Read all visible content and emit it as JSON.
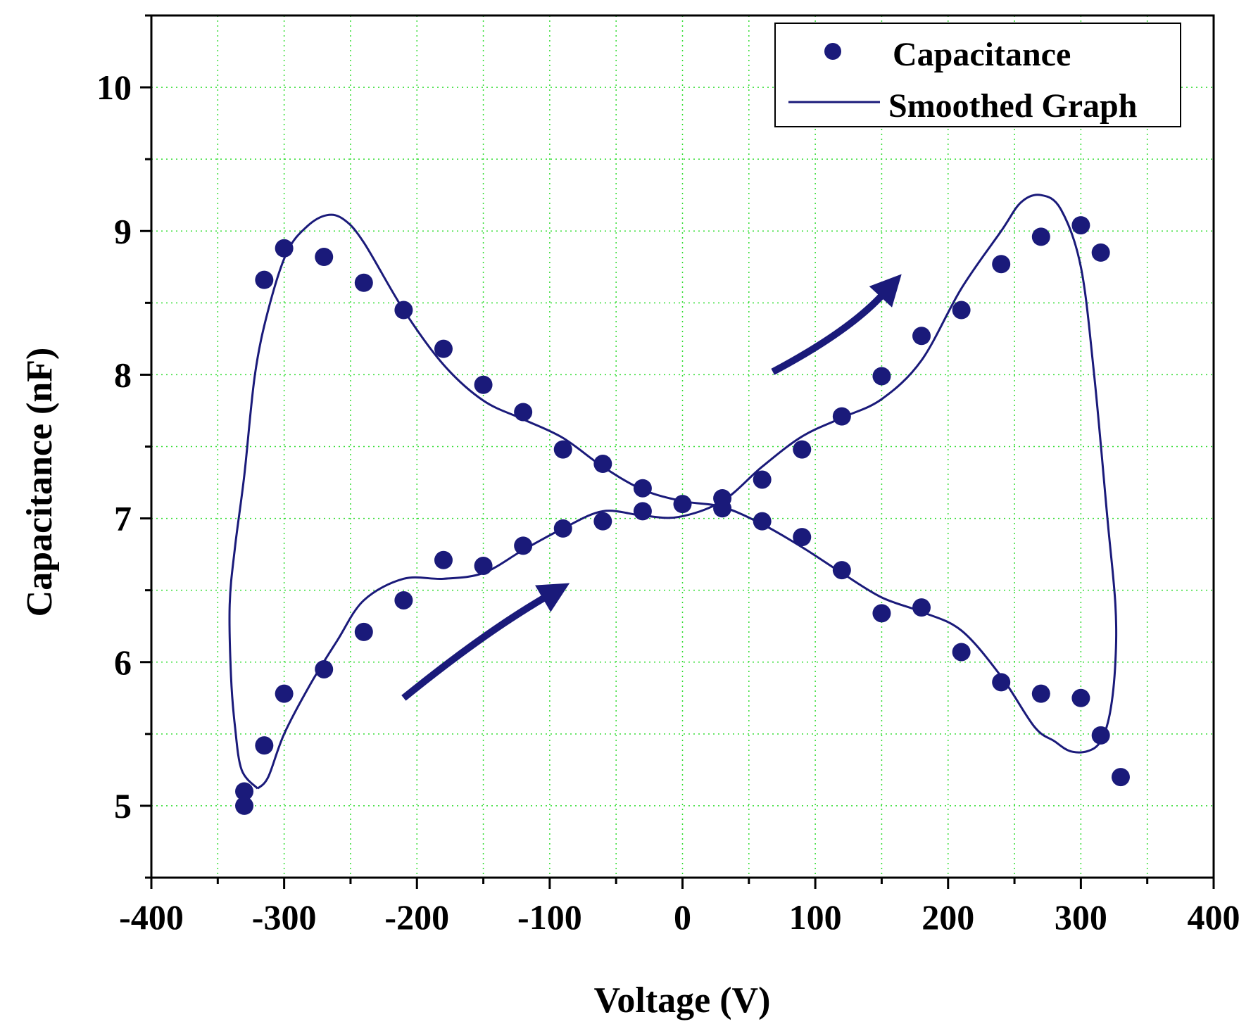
{
  "chart_data": {
    "type": "scatter",
    "title": "",
    "xlabel": "Voltage (V)",
    "ylabel": "Capacitance (nF)",
    "xlim": [
      -400,
      400
    ],
    "ylim": [
      4.5,
      10.5
    ],
    "xticks": [
      -400,
      -300,
      -200,
      -100,
      0,
      100,
      200,
      300,
      400
    ],
    "xtick_labels": [
      "-400",
      "-300",
      "-200",
      "-100",
      "0",
      "100",
      "200",
      "300",
      "400"
    ],
    "yticks": [
      5,
      6,
      7,
      8,
      9,
      10
    ],
    "ytick_labels": [
      "5",
      "6",
      "7",
      "8",
      "9",
      "10"
    ],
    "grid": true,
    "legend_position": "top-right",
    "colors": {
      "series": "#1a1a7a",
      "grid": "#33dd33",
      "axis": "#000000"
    },
    "series": [
      {
        "name": "Capacitance",
        "kind": "scatter",
        "points": [
          [
            -330,
            5.0
          ],
          [
            -330,
            5.1
          ],
          [
            -315,
            5.42
          ],
          [
            -300,
            5.78
          ],
          [
            -270,
            5.95
          ],
          [
            -240,
            6.21
          ],
          [
            -210,
            6.43
          ],
          [
            -180,
            6.71
          ],
          [
            -150,
            6.67
          ],
          [
            -120,
            6.81
          ],
          [
            -90,
            6.93
          ],
          [
            -60,
            6.98
          ],
          [
            -30,
            7.05
          ],
          [
            0,
            7.1
          ],
          [
            30,
            7.07
          ],
          [
            60,
            7.27
          ],
          [
            90,
            7.48
          ],
          [
            120,
            7.71
          ],
          [
            150,
            7.99
          ],
          [
            180,
            8.27
          ],
          [
            210,
            8.45
          ],
          [
            240,
            8.77
          ],
          [
            270,
            8.96
          ],
          [
            300,
            9.04
          ],
          [
            315,
            8.85
          ],
          [
            315,
            5.49
          ],
          [
            330,
            5.2
          ],
          [
            300,
            5.75
          ],
          [
            270,
            5.78
          ],
          [
            240,
            5.86
          ],
          [
            210,
            6.07
          ],
          [
            180,
            6.38
          ],
          [
            150,
            6.34
          ],
          [
            120,
            6.64
          ],
          [
            90,
            6.87
          ],
          [
            60,
            6.98
          ],
          [
            30,
            7.14
          ],
          [
            -30,
            7.21
          ],
          [
            -60,
            7.38
          ],
          [
            -90,
            7.48
          ],
          [
            -120,
            7.74
          ],
          [
            -150,
            7.93
          ],
          [
            -180,
            8.18
          ],
          [
            -210,
            8.45
          ],
          [
            -240,
            8.64
          ],
          [
            -270,
            8.82
          ],
          [
            -300,
            8.88
          ],
          [
            -315,
            8.66
          ]
        ]
      },
      {
        "name": "Smoothed Graph",
        "kind": "line",
        "points": [
          [
            -320,
            5.12
          ],
          [
            -312,
            5.2
          ],
          [
            -300,
            5.5
          ],
          [
            -280,
            5.85
          ],
          [
            -260,
            6.15
          ],
          [
            -240,
            6.43
          ],
          [
            -210,
            6.58
          ],
          [
            -180,
            6.58
          ],
          [
            -150,
            6.62
          ],
          [
            -120,
            6.78
          ],
          [
            -90,
            6.93
          ],
          [
            -60,
            7.05
          ],
          [
            -30,
            7.02
          ],
          [
            -3,
            7.01
          ],
          [
            30,
            7.12
          ],
          [
            60,
            7.36
          ],
          [
            90,
            7.57
          ],
          [
            120,
            7.7
          ],
          [
            150,
            7.83
          ],
          [
            180,
            8.1
          ],
          [
            210,
            8.6
          ],
          [
            240,
            9.0
          ],
          [
            255,
            9.2
          ],
          [
            270,
            9.25
          ],
          [
            285,
            9.15
          ],
          [
            300,
            8.75
          ],
          [
            310,
            8.0
          ],
          [
            320,
            7.0
          ],
          [
            326,
            6.4
          ],
          [
            326,
            6.0
          ],
          [
            322,
            5.65
          ],
          [
            315,
            5.45
          ],
          [
            305,
            5.38
          ],
          [
            292,
            5.38
          ],
          [
            280,
            5.45
          ],
          [
            265,
            5.55
          ],
          [
            240,
            5.9
          ],
          [
            210,
            6.22
          ],
          [
            180,
            6.35
          ],
          [
            150,
            6.45
          ],
          [
            120,
            6.62
          ],
          [
            90,
            6.8
          ],
          [
            60,
            6.96
          ],
          [
            30,
            7.08
          ],
          [
            0,
            7.12
          ],
          [
            -30,
            7.2
          ],
          [
            -60,
            7.36
          ],
          [
            -90,
            7.56
          ],
          [
            -120,
            7.69
          ],
          [
            -150,
            7.82
          ],
          [
            -180,
            8.07
          ],
          [
            -210,
            8.45
          ],
          [
            -240,
            8.92
          ],
          [
            -255,
            9.08
          ],
          [
            -268,
            9.11
          ],
          [
            -283,
            9.03
          ],
          [
            -298,
            8.85
          ],
          [
            -312,
            8.45
          ],
          [
            -322,
            8.0
          ],
          [
            -330,
            7.3
          ],
          [
            -337,
            6.8
          ],
          [
            -341,
            6.4
          ],
          [
            -340,
            5.9
          ],
          [
            -337,
            5.55
          ],
          [
            -332,
            5.25
          ],
          [
            -320,
            5.12
          ]
        ]
      }
    ],
    "annotations": [
      {
        "type": "arrow",
        "direction": "up-right",
        "from": [
          -210,
          5.75
        ],
        "via": [
          -150,
          6.2
        ],
        "to": [
          -85,
          6.55
        ]
      },
      {
        "type": "arrow",
        "direction": "up-right",
        "from": [
          68,
          8.02
        ],
        "via": [
          125,
          8.3
        ],
        "to": [
          165,
          8.7
        ]
      }
    ]
  }
}
